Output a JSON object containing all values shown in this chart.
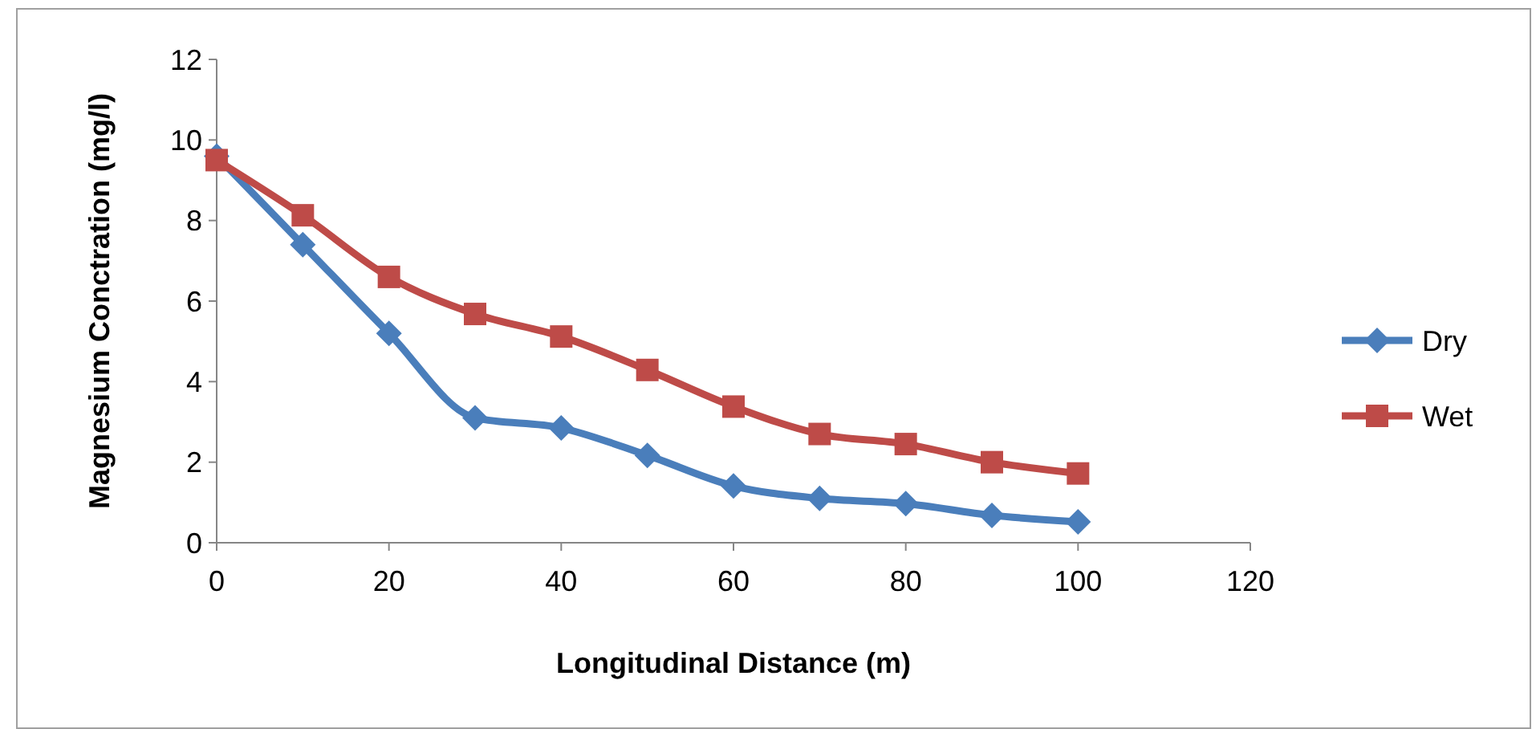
{
  "chart_data": {
    "type": "line",
    "xlabel": "Longitudinal Distance (m)",
    "ylabel": "Magnesium Conctration (mg/l)",
    "x": [
      0,
      10,
      20,
      30,
      40,
      50,
      60,
      70,
      80,
      90,
      100
    ],
    "xlim": [
      0,
      120
    ],
    "xticks": [
      0,
      20,
      40,
      60,
      80,
      100,
      120
    ],
    "ylim": [
      0,
      12
    ],
    "yticks": [
      0,
      2,
      4,
      6,
      8,
      10,
      12
    ],
    "grid": false,
    "legend": "right",
    "series": [
      {
        "name": "Dry",
        "color": "#4a7ebb",
        "marker": "diamond",
        "values": [
          9.6,
          7.4,
          5.2,
          3.1,
          2.85,
          2.17,
          1.41,
          1.1,
          0.97,
          0.68,
          0.52
        ]
      },
      {
        "name": "Wet",
        "color": "#be4b48",
        "marker": "square",
        "values": [
          9.5,
          8.13,
          6.6,
          5.68,
          5.12,
          4.29,
          3.38,
          2.7,
          2.45,
          2.0,
          1.72
        ]
      }
    ]
  }
}
